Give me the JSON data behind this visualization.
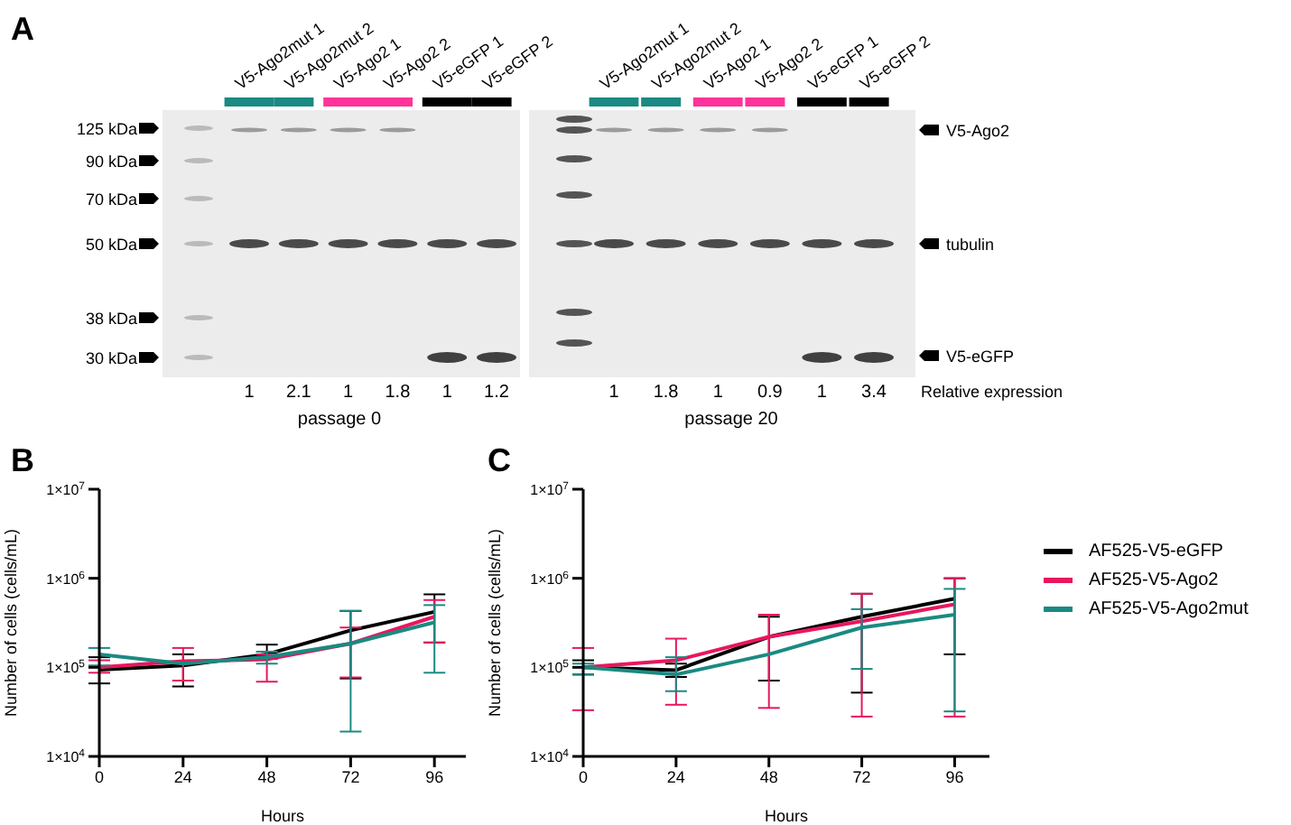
{
  "chart_data": [
    {
      "type": "other",
      "title": "A",
      "categories": [
        "V5-Ago2mut 1",
        "V5-Ago2mut 2",
        "V5-Ago2 1",
        "V5-Ago2 2",
        "V5-eGFP 1",
        "V5-eGFP 2",
        "V5-Ago2mut 1",
        "V5-Ago2mut 2",
        "V5-Ago2 1",
        "V5-Ago2 2",
        "V5-eGFP 1",
        "V5-eGFP 2"
      ],
      "values": [
        1,
        2.1,
        1,
        1.8,
        1,
        1.2,
        1,
        1.8,
        1,
        0.9,
        1,
        3.4
      ],
      "colors": [
        "#1a8a82",
        "#1a8a82",
        "#ff3399",
        "#ff3399",
        "#000000",
        "#000000",
        "#1a8a82",
        "#1a8a82",
        "#ff3399",
        "#ff3399",
        "#000000",
        "#000000"
      ],
      "data_labels": true,
      "annotations": [
        "125 kDa",
        "90 kDa",
        "70 kDa",
        "50 kDa",
        "38 kDa",
        "30 kDa",
        "V5-Ago2",
        "tubulin",
        "V5-eGFP",
        "Relative expression",
        "passage 0",
        "passage 20"
      ]
    },
    {
      "type": "line",
      "title": "B",
      "xlabel": "Hours",
      "ylabel": "Number of cells (cells/mL)",
      "x": [
        0,
        24,
        48,
        72,
        96
      ],
      "xlim": [
        0,
        105
      ],
      "xticks": [
        0,
        24,
        48,
        72,
        96
      ],
      "log": "y",
      "ylim": [
        10000,
        10000000
      ],
      "yticks": [
        {
          "value": 10000,
          "label": "1×10$^{4}$"
        },
        {
          "value": 100000,
          "label": "1×10$^{5}$"
        },
        {
          "value": 1000000,
          "label": "1×10$^{6}$"
        },
        {
          "value": 10000000,
          "label": "1×10$^{7}$"
        }
      ],
      "marker": "none",
      "line_style": "solid",
      "series": [
        {
          "color": "#000000",
          "values": [
            94000,
            105000,
            140000,
            260000,
            420000
          ],
          "errors": [
            [
              66000,
              130000
            ],
            [
              61000,
              140000
            ],
            [
              125000,
              180000
            ],
            [
              75000,
              430000
            ],
            [
              190000,
              660000
            ]
          ]
        },
        {
          "color": "#e8175d",
          "values": [
            100000,
            117000,
            123000,
            185000,
            370000
          ],
          "errors": [
            [
              87000,
              120000
            ],
            [
              71000,
              165000
            ],
            [
              69000,
              140000
            ],
            [
              77000,
              280000
            ],
            [
              190000,
              570000
            ]
          ]
        },
        {
          "color": "#1a8a82",
          "values": [
            140000,
            110000,
            130000,
            185000,
            320000
          ],
          "errors": [
            [
              105000,
              165000
            ],
            null,
            [
              110000,
              150000
            ],
            [
              19000,
              430000
            ],
            [
              87000,
              500000
            ]
          ]
        }
      ]
    },
    {
      "type": "line",
      "title": "C",
      "xlabel": "Hours",
      "ylabel": "Number of cells (cells/mL)",
      "x": [
        0,
        24,
        48,
        72,
        96
      ],
      "xlim": [
        0,
        105
      ],
      "xticks": [
        0,
        24,
        48,
        72,
        96
      ],
      "log": "y",
      "ylim": [
        10000,
        10000000
      ],
      "yticks": [
        {
          "value": 10000,
          "label": "1×10$^{4}$"
        },
        {
          "value": 100000,
          "label": "1×10$^{5}$"
        },
        {
          "value": 1000000,
          "label": "1×10$^{6}$"
        },
        {
          "value": 10000000,
          "label": "1×10$^{7}$"
        }
      ],
      "marker": "none",
      "line_style": "solid",
      "legend": "right",
      "series": [
        {
          "name": "AF525-V5-eGFP",
          "color": "#000000",
          "values": [
            100000,
            93000,
            220000,
            370000,
            590000
          ],
          "errors": [
            [
              83000,
              120000
            ],
            [
              78000,
              110000
            ],
            [
              71000,
              370000
            ],
            [
              52000,
              670000
            ],
            [
              140000,
              1000000
            ]
          ]
        },
        {
          "name": "AF525-V5-Ago2",
          "color": "#e8175d",
          "values": [
            100000,
            120000,
            220000,
            330000,
            510000
          ],
          "errors": [
            [
              33000,
              165000
            ],
            [
              38000,
              210000
            ],
            [
              35000,
              390000
            ],
            [
              28000,
              670000
            ],
            [
              28000,
              1000000
            ]
          ]
        },
        {
          "name": "AF525-V5-Ago2mut",
          "color": "#1a8a82",
          "values": [
            100000,
            83000,
            140000,
            280000,
            390000
          ],
          "errors": [
            [
              83000,
              110000
            ],
            [
              54000,
              130000
            ],
            null,
            [
              96000,
              450000
            ],
            [
              32000,
              760000
            ]
          ]
        }
      ]
    }
  ]
}
